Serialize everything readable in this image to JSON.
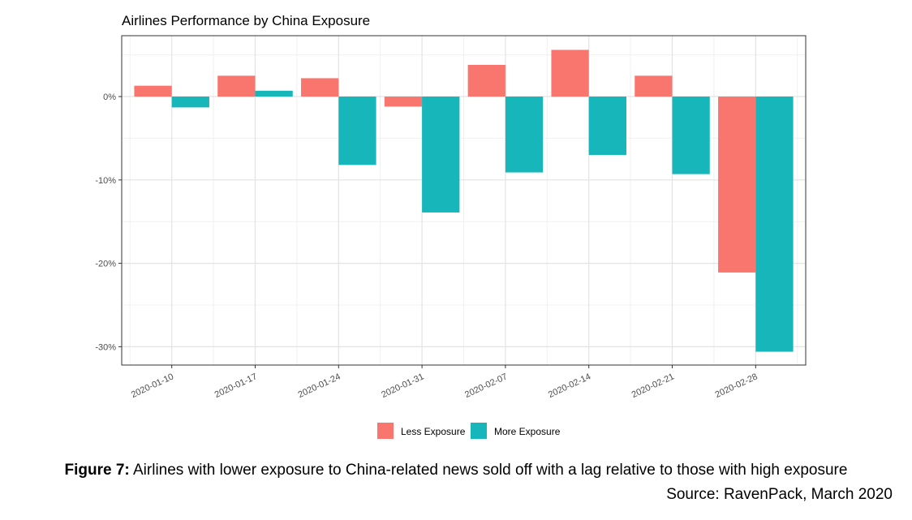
{
  "chart_data": {
    "type": "bar",
    "title": "Airlines Performance by China Exposure",
    "xlabel": "",
    "ylabel": "",
    "categories": [
      "2020-01-10",
      "2020-01-17",
      "2020-01-24",
      "2020-01-31",
      "2020-02-07",
      "2020-02-14",
      "2020-02-21",
      "2020-02-28"
    ],
    "series": [
      {
        "name": "Less Exposure",
        "color": "#F8766D",
        "values": [
          1.3,
          2.5,
          2.2,
          -1.2,
          3.8,
          5.6,
          2.5,
          -21.1
        ]
      },
      {
        "name": "More Exposure",
        "color": "#17B6BA",
        "values": [
          -1.3,
          0.7,
          -8.2,
          -13.9,
          -9.1,
          -7.0,
          -9.3,
          -30.6
        ]
      }
    ],
    "y_ticks": [
      0,
      -10,
      -20,
      -30
    ],
    "y_tick_labels": [
      "0%",
      "-10%",
      "-20%",
      "-30%"
    ],
    "ylim": [
      -32.2,
      7.3
    ],
    "grid": true,
    "legend_position": "bottom"
  },
  "caption": {
    "figure_label": "Figure 7:",
    "text": " Airlines with lower exposure to China-related news sold off with a lag relative to those with high exposure",
    "source": "Source: RavenPack, March 2020"
  }
}
